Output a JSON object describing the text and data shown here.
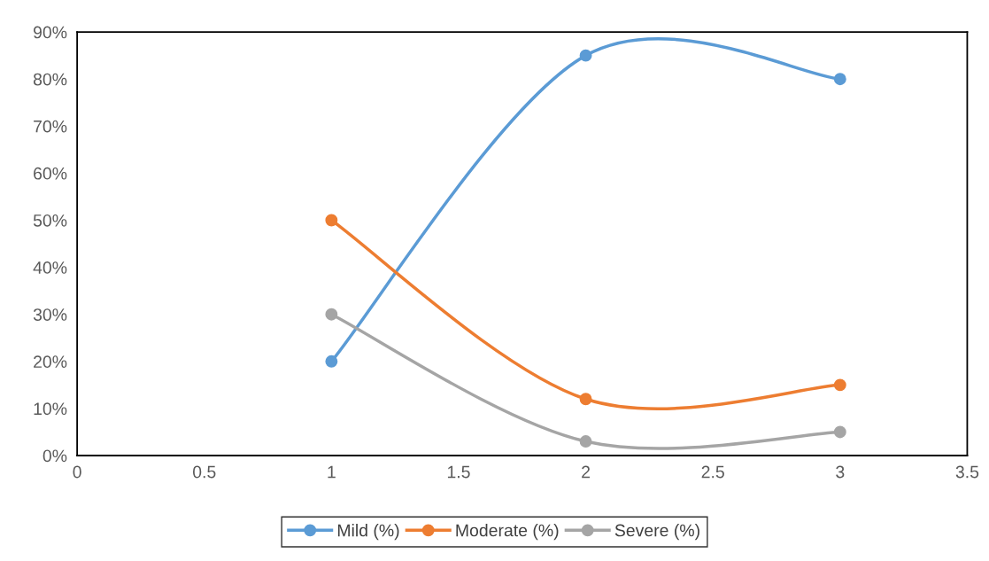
{
  "chart_data": {
    "type": "line",
    "x": [
      1,
      2,
      3
    ],
    "series": [
      {
        "name": "Mild (%)",
        "color": "#5b9bd5",
        "values": [
          20,
          85,
          80
        ]
      },
      {
        "name": "Moderate (%)",
        "color": "#ed7d31",
        "values": [
          50,
          12,
          15
        ]
      },
      {
        "name": "Severe (%)",
        "color": "#a5a5a5",
        "values": [
          30,
          3,
          5
        ]
      }
    ],
    "xlim": [
      0,
      3.5
    ],
    "xticks": [
      0,
      0.5,
      1,
      1.5,
      2,
      2.5,
      3,
      3.5
    ],
    "ylim": [
      0,
      90
    ],
    "yticks": [
      {
        "value": 0,
        "label": "0%"
      },
      {
        "value": 10,
        "label": "10%"
      },
      {
        "value": 20,
        "label": "20%"
      },
      {
        "value": 30,
        "label": "30%"
      },
      {
        "value": 40,
        "label": "40%"
      },
      {
        "value": 50,
        "label": "50%"
      },
      {
        "value": 60,
        "label": "60%"
      },
      {
        "value": 70,
        "label": "70%"
      },
      {
        "value": 80,
        "label": "80%"
      },
      {
        "value": 90,
        "label": "90%"
      }
    ],
    "grid": false,
    "legend": "bottom",
    "marker": "circle",
    "line_style": "solid"
  }
}
